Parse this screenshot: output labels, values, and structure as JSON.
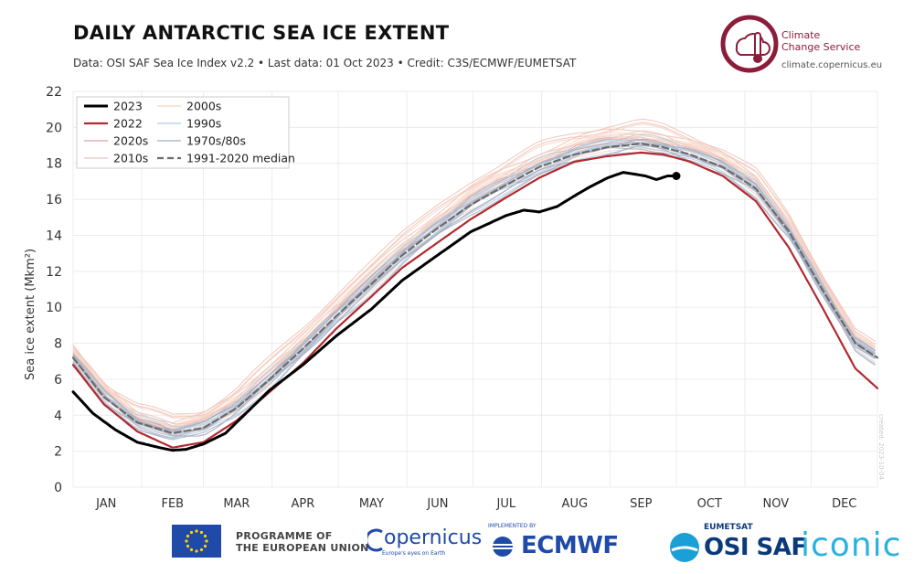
{
  "header": {
    "title": "DAILY ANTARCTIC SEA ICE EXTENT",
    "subtitle": "Data: OSI SAF Sea Ice Index v2.2 • Last data: 01 Oct 2023 • Credit: C3S/ECMWF/EUMETSAT",
    "brand_name_line1": "Climate",
    "brand_name_line2": "Change Service",
    "brand_url": "climate.copernicus.eu"
  },
  "footer": {
    "eu_line1": "PROGRAMME OF",
    "eu_line2": "THE EUROPEAN UNION",
    "copernicus": "opernicus",
    "copernicus_tag": "Europe's eyes on Earth",
    "ecmwf_tag": "IMPLEMENTED BY",
    "ecmwf": "ECMWF",
    "eumetsat": "EUMETSAT",
    "osisaf": "OSI SAF",
    "iconic": "iconic"
  },
  "colors": {
    "y2023": "#000000",
    "y2022": "#b22a2f",
    "y2020s": "#d9a3a6",
    "y2010s": "#eec2b6",
    "y2000s": "#f6d4c4",
    "y1990s": "#b4cbdf",
    "y1970s80s": "#a7aec2",
    "median": "#6b6b6b",
    "grid": "#ececec",
    "axis_text": "#333333"
  },
  "chart_data": {
    "type": "line",
    "title": "DAILY ANTARCTIC SEA ICE EXTENT",
    "ylabel": "Sea ice extent (Mkm²)",
    "xlabel": "",
    "ylim": [
      0,
      22
    ],
    "yticks": [
      0,
      2,
      4,
      6,
      8,
      10,
      12,
      14,
      16,
      18,
      20,
      22
    ],
    "xlim": [
      1,
      365
    ],
    "months": [
      {
        "label": "JAN",
        "center": 16
      },
      {
        "label": "FEB",
        "center": 46
      },
      {
        "label": "MAR",
        "center": 75
      },
      {
        "label": "APR",
        "center": 105
      },
      {
        "label": "MAY",
        "center": 136
      },
      {
        "label": "JUN",
        "center": 166
      },
      {
        "label": "JUL",
        "center": 197
      },
      {
        "label": "AUG",
        "center": 228
      },
      {
        "label": "SEP",
        "center": 258
      },
      {
        "label": "OCT",
        "center": 289
      },
      {
        "label": "NOV",
        "center": 319
      },
      {
        "label": "DEC",
        "center": 350
      }
    ],
    "grid": true,
    "legend_position": "top-left",
    "watermark": "created: 2023-10-04",
    "legend": [
      {
        "label": "2023",
        "color": "#000000",
        "width": 3,
        "dash": ""
      },
      {
        "label": "2022",
        "color": "#b22a2f",
        "width": 2.2,
        "dash": ""
      },
      {
        "label": "2020s",
        "color": "#d9a3a6",
        "width": 1.2,
        "dash": ""
      },
      {
        "label": "2010s",
        "color": "#eec2b6",
        "width": 1.2,
        "dash": ""
      },
      {
        "label": "2000s",
        "color": "#f6d4c4",
        "width": 1.2,
        "dash": ""
      },
      {
        "label": "1990s",
        "color": "#b4cbdf",
        "width": 1.2,
        "dash": ""
      },
      {
        "label": "1970s/80s",
        "color": "#a7aec2",
        "width": 1.2,
        "dash": ""
      },
      {
        "label": "1991-2020 median",
        "color": "#6b6b6b",
        "width": 2.2,
        "dash": "7,4"
      }
    ],
    "series": [
      {
        "name": "1991-2020 median",
        "x": [
          1,
          15,
          30,
          46,
          60,
          75,
          90,
          105,
          120,
          136,
          150,
          166,
          181,
          197,
          212,
          228,
          243,
          258,
          268,
          280,
          295,
          310,
          325,
          340,
          355,
          365
        ],
        "values": [
          7.2,
          5.0,
          3.6,
          3.0,
          3.3,
          4.4,
          6.0,
          7.7,
          9.5,
          11.3,
          12.9,
          14.4,
          15.7,
          16.8,
          17.8,
          18.5,
          18.9,
          19.1,
          18.9,
          18.5,
          17.8,
          16.6,
          14.2,
          11.0,
          8.0,
          7.2
        ]
      },
      {
        "name": "2022",
        "x": [
          1,
          15,
          30,
          46,
          60,
          75,
          90,
          105,
          120,
          136,
          150,
          166,
          181,
          197,
          212,
          228,
          243,
          258,
          268,
          280,
          295,
          310,
          325,
          340,
          355,
          365
        ],
        "values": [
          6.8,
          4.6,
          3.1,
          2.2,
          2.5,
          3.7,
          5.3,
          6.9,
          8.8,
          10.6,
          12.2,
          13.6,
          14.9,
          16.1,
          17.2,
          18.1,
          18.4,
          18.6,
          18.5,
          18.1,
          17.3,
          15.9,
          13.3,
          10.0,
          6.6,
          5.5
        ]
      },
      {
        "name": "2023",
        "x": [
          1,
          10,
          20,
          30,
          40,
          46,
          52,
          60,
          70,
          80,
          90,
          105,
          120,
          136,
          150,
          166,
          181,
          197,
          205,
          212,
          220,
          228,
          235,
          243,
          250,
          255,
          260,
          265,
          270,
          274
        ],
        "values": [
          5.3,
          4.1,
          3.2,
          2.5,
          2.2,
          2.05,
          2.1,
          2.4,
          3.0,
          4.2,
          5.4,
          6.8,
          8.4,
          9.9,
          11.5,
          12.9,
          14.2,
          15.1,
          15.4,
          15.3,
          15.6,
          16.2,
          16.7,
          17.2,
          17.5,
          17.4,
          17.3,
          17.1,
          17.3,
          17.3
        ]
      }
    ],
    "background_years": [
      {
        "decade": "2020s",
        "offsets": [
          0.4,
          0.1
        ]
      },
      {
        "decade": "2010s",
        "offsets": [
          0.9,
          0.6,
          0.3,
          -0.1,
          1.3,
          0.5,
          0.0,
          1.1
        ]
      },
      {
        "decade": "2000s",
        "offsets": [
          0.7,
          0.3,
          -0.2,
          0.5,
          1.0,
          0.2,
          0.6
        ]
      },
      {
        "decade": "1990s",
        "offsets": [
          0.2,
          -0.3,
          0.1,
          -0.1,
          0.4,
          -0.4,
          0.0
        ]
      },
      {
        "decade": "1970s/80s",
        "offsets": [
          -0.2,
          0.1,
          -0.5,
          0.3,
          -0.3,
          0.2
        ]
      }
    ],
    "last_point": {
      "day": 274,
      "value": 17.3
    }
  }
}
